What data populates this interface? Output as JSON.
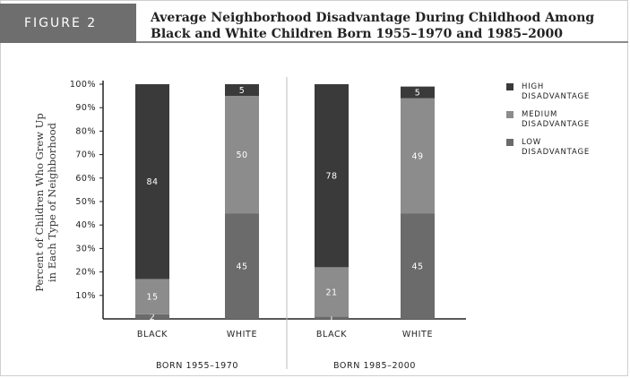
{
  "figure_label": "FIGURE 2",
  "chart_data": {
    "type": "bar",
    "stacked": true,
    "title": "Average Neighborhood Disadvantage During Childhood Among Black and White Children Born 1955–1970 and 1985–2000",
    "ylabel": "Percent of Children Who Grew Up in Each Type of Neighborhood",
    "xlabel": "",
    "ylim": [
      0,
      100
    ],
    "yticks": [
      "10%",
      "20%",
      "30%",
      "40%",
      "50%",
      "60%",
      "70%",
      "80%",
      "90%",
      "100%"
    ],
    "categories": [
      "BLACK",
      "WHITE",
      "BLACK",
      "WHITE"
    ],
    "groups": [
      "BORN 1955–1970",
      "BORN 1985–2000"
    ],
    "series": [
      {
        "name": "LOW DISADVANTAGE",
        "color": "#6b6b6b",
        "values": [
          2,
          45,
          1,
          45
        ]
      },
      {
        "name": "MEDIUM DISADVANTAGE",
        "color": "#8c8c8c",
        "values": [
          15,
          50,
          21,
          49
        ]
      },
      {
        "name": "HIGH DISADVANTAGE",
        "color": "#3a3a3a",
        "values": [
          84,
          5,
          78,
          5
        ]
      }
    ],
    "legend_position": "right",
    "grid": false
  }
}
